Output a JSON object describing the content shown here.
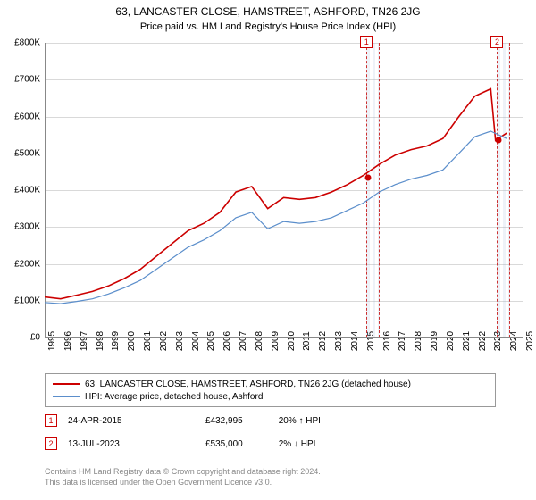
{
  "title": "63, LANCASTER CLOSE, HAMSTREET, ASHFORD, TN26 2JG",
  "subtitle": "Price paid vs. HM Land Registry's House Price Index (HPI)",
  "chart": {
    "type": "line",
    "background_color": "#ffffff",
    "grid_color": "#d9d9d9",
    "ylim": [
      0,
      800000
    ],
    "ytick_step": 100000,
    "yticks": [
      "£0",
      "£100K",
      "£200K",
      "£300K",
      "£400K",
      "£500K",
      "£600K",
      "£700K",
      "£800K"
    ],
    "xlim": [
      1995,
      2025
    ],
    "xticks": [
      "1995",
      "1996",
      "1997",
      "1998",
      "1999",
      "2000",
      "2001",
      "2002",
      "2003",
      "2004",
      "2005",
      "2006",
      "2007",
      "2008",
      "2009",
      "2010",
      "2011",
      "2012",
      "2013",
      "2014",
      "2015",
      "2016",
      "2017",
      "2018",
      "2019",
      "2020",
      "2021",
      "2022",
      "2023",
      "2024",
      "2025"
    ],
    "series": [
      {
        "name": "63, LANCASTER CLOSE, HAMSTREET, ASHFORD, TN26 2JG (detached house)",
        "color": "#cc0000",
        "width": 1.6,
        "data": [
          [
            1995,
            110000
          ],
          [
            1996,
            105000
          ],
          [
            1997,
            115000
          ],
          [
            1998,
            125000
          ],
          [
            1999,
            140000
          ],
          [
            2000,
            160000
          ],
          [
            2001,
            185000
          ],
          [
            2002,
            220000
          ],
          [
            2003,
            255000
          ],
          [
            2004,
            290000
          ],
          [
            2005,
            310000
          ],
          [
            2006,
            340000
          ],
          [
            2007,
            395000
          ],
          [
            2008,
            410000
          ],
          [
            2009,
            350000
          ],
          [
            2010,
            380000
          ],
          [
            2011,
            375000
          ],
          [
            2012,
            380000
          ],
          [
            2013,
            395000
          ],
          [
            2014,
            415000
          ],
          [
            2015,
            440000
          ],
          [
            2016,
            470000
          ],
          [
            2017,
            495000
          ],
          [
            2018,
            510000
          ],
          [
            2019,
            520000
          ],
          [
            2020,
            540000
          ],
          [
            2021,
            600000
          ],
          [
            2022,
            655000
          ],
          [
            2023,
            675000
          ],
          [
            2023.3,
            535000
          ],
          [
            2024,
            555000
          ]
        ]
      },
      {
        "name": "HPI: Average price, detached house, Ashford",
        "color": "#5b8ecb",
        "width": 1.2,
        "data": [
          [
            1995,
            95000
          ],
          [
            1996,
            92000
          ],
          [
            1997,
            98000
          ],
          [
            1998,
            105000
          ],
          [
            1999,
            118000
          ],
          [
            2000,
            135000
          ],
          [
            2001,
            155000
          ],
          [
            2002,
            185000
          ],
          [
            2003,
            215000
          ],
          [
            2004,
            245000
          ],
          [
            2005,
            265000
          ],
          [
            2006,
            290000
          ],
          [
            2007,
            325000
          ],
          [
            2008,
            340000
          ],
          [
            2009,
            295000
          ],
          [
            2010,
            315000
          ],
          [
            2011,
            310000
          ],
          [
            2012,
            315000
          ],
          [
            2013,
            325000
          ],
          [
            2014,
            345000
          ],
          [
            2015,
            365000
          ],
          [
            2016,
            395000
          ],
          [
            2017,
            415000
          ],
          [
            2018,
            430000
          ],
          [
            2019,
            440000
          ],
          [
            2020,
            455000
          ],
          [
            2021,
            500000
          ],
          [
            2022,
            545000
          ],
          [
            2023,
            560000
          ],
          [
            2024,
            540000
          ]
        ]
      }
    ],
    "highlight_bands": [
      {
        "from": 2015.2,
        "to": 2015.9
      },
      {
        "from": 2023.4,
        "to": 2024.1
      }
    ],
    "markers": [
      {
        "label": "1",
        "x": 2015.2,
        "y_top": -8,
        "dot_x": 2015.3,
        "dot_y": 432995
      },
      {
        "label": "2",
        "x": 2023.4,
        "y_top": -8,
        "dot_x": 2023.5,
        "dot_y": 535000
      }
    ]
  },
  "legend": [
    {
      "color": "#cc0000",
      "label": "63, LANCASTER CLOSE, HAMSTREET, ASHFORD, TN26 2JG (detached house)"
    },
    {
      "color": "#5b8ecb",
      "label": "HPI: Average price, detached house, Ashford"
    }
  ],
  "sales": [
    {
      "num": "1",
      "date": "24-APR-2015",
      "price": "£432,995",
      "delta": "20% ↑ HPI"
    },
    {
      "num": "2",
      "date": "13-JUL-2023",
      "price": "£535,000",
      "delta": "2% ↓ HPI"
    }
  ],
  "footer_line1": "Contains HM Land Registry data © Crown copyright and database right 2024.",
  "footer_line2": "This data is licensed under the Open Government Licence v3.0."
}
